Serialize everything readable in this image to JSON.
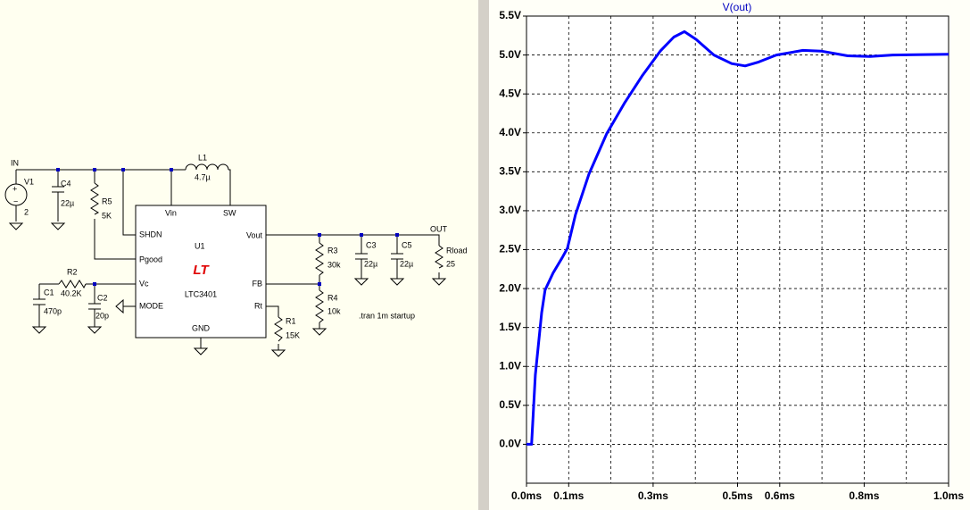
{
  "schematic": {
    "in": "IN",
    "v1": "V1",
    "v1_val": "2",
    "c4": "C4",
    "c4_val": "22µ",
    "r5": "R5",
    "r5_val": "5K",
    "l1": "L1",
    "l1_val": "4.7µ",
    "pin_vin": "Vin",
    "pin_sw": "SW",
    "pin_shdn": "SHDN",
    "u1": "U1",
    "pin_pgood": "Pgood",
    "pin_vout": "Vout",
    "pin_fb": "FB",
    "pin_rt": "Rt",
    "pin_vc": "Vc",
    "pin_mode": "MODE",
    "logo": "LT",
    "part": "LTC3401",
    "pin_gnd": "GND",
    "r2": "R2",
    "r2_val": "40.2K",
    "c1": "C1",
    "c1_val": "470p",
    "c2": "C2",
    "c2_val": "20p",
    "r3": "R3",
    "r3_val": "30k",
    "r4": "R4",
    "r4_val": "10k",
    "r1": "R1",
    "r1_val": "15K",
    "c3": "C3",
    "c3_val": "22µ",
    "c5": "C5",
    "c5_val": "22µ",
    "out": "OUT",
    "rload": "Rload",
    "rload_val": "25",
    "directive": ".tran 1m startup"
  },
  "chart_data": {
    "type": "line",
    "title": "V(out)",
    "color": "#0000ff",
    "x": [
      0,
      0.012,
      0.021,
      0.036,
      0.044,
      0.063,
      0.085,
      0.097,
      0.116,
      0.148,
      0.19,
      0.233,
      0.275,
      0.317,
      0.349,
      0.374,
      0.402,
      0.444,
      0.486,
      0.518,
      0.55,
      0.592,
      0.655,
      0.698,
      0.761,
      0.814,
      0.867,
      1.0
    ],
    "values": [
      0,
      0,
      0.89,
      1.69,
      1.98,
      2.2,
      2.4,
      2.52,
      2.95,
      3.47,
      3.99,
      4.39,
      4.74,
      5.05,
      5.23,
      5.3,
      5.2,
      5.0,
      4.89,
      4.86,
      4.91,
      5.0,
      5.06,
      5.05,
      4.99,
      4.98,
      5.0,
      5.01
    ],
    "xlim": [
      0,
      1
    ],
    "ylim": [
      -0.5,
      5.5
    ],
    "xticks": [
      {
        "value": 0,
        "label": "0.0ms"
      },
      {
        "value": 0.1,
        "label": "0.1ms"
      },
      {
        "value": 0.3,
        "label": "0.3ms"
      },
      {
        "value": 0.5,
        "label": "0.5ms"
      },
      {
        "value": 0.6,
        "label": "0.6ms"
      },
      {
        "value": 0.8,
        "label": "0.8ms"
      },
      {
        "value": 1.0,
        "label": "1.0ms"
      }
    ],
    "xgrid": [
      0.1,
      0.2,
      0.3,
      0.4,
      0.5,
      0.6,
      0.7,
      0.8,
      0.9
    ],
    "yticks": [
      {
        "value": 0,
        "label": "0.0V"
      },
      {
        "value": 0.5,
        "label": "0.5V"
      },
      {
        "value": 1,
        "label": "1.0V"
      },
      {
        "value": 1.5,
        "label": "1.5V"
      },
      {
        "value": 2,
        "label": "2.0V"
      },
      {
        "value": 2.5,
        "label": "2.5V"
      },
      {
        "value": 3,
        "label": "3.0V"
      },
      {
        "value": 3.5,
        "label": "3.5V"
      },
      {
        "value": 4,
        "label": "4.0V"
      },
      {
        "value": 4.5,
        "label": "4.5V"
      },
      {
        "value": 5,
        "label": "5.0V"
      },
      {
        "value": 5.5,
        "label": "5.5V"
      }
    ],
    "grid": true
  }
}
